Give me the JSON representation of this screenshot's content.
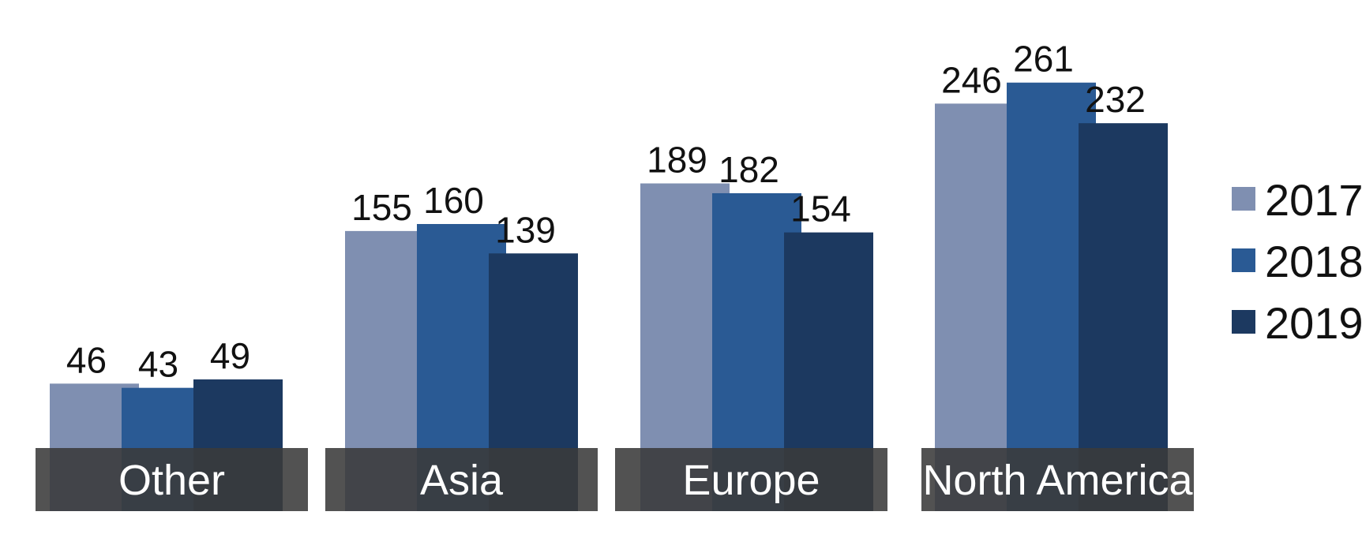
{
  "chart_data": {
    "type": "bar",
    "categories": [
      "Other",
      "Asia",
      "Europe",
      "North America"
    ],
    "series": [
      {
        "name": "2017",
        "values": [
          46,
          155,
          189,
          246
        ],
        "color": "#7f8fb1"
      },
      {
        "name": "2018",
        "values": [
          43,
          160,
          182,
          261
        ],
        "color": "#2a5a94"
      },
      {
        "name": "2019",
        "values": [
          49,
          139,
          154,
          232
        ],
        "color": "#1c3960"
      }
    ],
    "title": "",
    "xlabel": "",
    "ylabel": "",
    "ylim": [
      0,
      261
    ],
    "grid": false,
    "legend_position": "right",
    "category_band_color": "#3a3a3a"
  }
}
